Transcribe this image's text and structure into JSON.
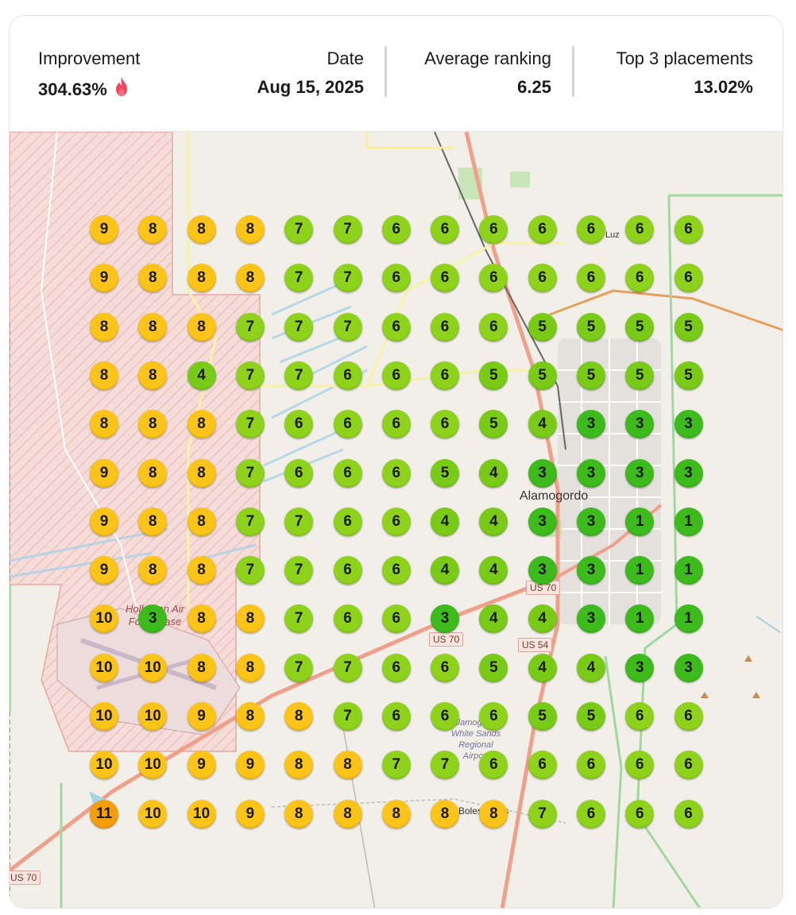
{
  "stats": {
    "improvement": {
      "label": "Improvement",
      "value": "304.63%",
      "icon": "fire-icon"
    },
    "date": {
      "label": "Date",
      "value": "Aug 15, 2025"
    },
    "average_ranking": {
      "label": "Average ranking",
      "value": "6.25"
    },
    "top3": {
      "label": "Top 3 placements",
      "value": "13.02%"
    }
  },
  "map": {
    "city_label": "Alamogordo",
    "place_labels": [
      "Luz",
      "Holloman Air Force Base",
      "Alamogordo White Sands Regional Airport",
      "Boles Acres"
    ],
    "road_shields": [
      "US 70",
      "US 70",
      "US 54",
      "US 70"
    ],
    "colors": {
      "rank_11": "#f59e0b",
      "rank_8_10": "#fcc419",
      "rank_6_7": "#8fd21b",
      "rank_4_5": "#7acb17",
      "rank_1_3": "#3dbb1c"
    },
    "grid": [
      [
        9,
        8,
        8,
        8,
        7,
        7,
        6,
        6,
        6,
        6,
        6,
        6,
        6
      ],
      [
        9,
        8,
        8,
        8,
        7,
        7,
        6,
        6,
        6,
        6,
        6,
        6,
        6
      ],
      [
        8,
        8,
        8,
        7,
        7,
        7,
        6,
        6,
        6,
        5,
        5,
        5,
        5
      ],
      [
        8,
        8,
        4,
        7,
        7,
        6,
        6,
        6,
        5,
        5,
        5,
        5,
        5
      ],
      [
        8,
        8,
        8,
        7,
        6,
        6,
        6,
        6,
        5,
        4,
        3,
        3,
        3
      ],
      [
        9,
        8,
        8,
        7,
        6,
        6,
        6,
        5,
        4,
        3,
        3,
        3,
        3
      ],
      [
        9,
        8,
        8,
        7,
        7,
        6,
        6,
        4,
        4,
        3,
        3,
        1,
        1
      ],
      [
        9,
        8,
        8,
        7,
        7,
        6,
        6,
        4,
        4,
        3,
        3,
        1,
        1
      ],
      [
        10,
        3,
        8,
        8,
        7,
        6,
        6,
        3,
        4,
        4,
        3,
        1,
        1
      ],
      [
        10,
        10,
        8,
        8,
        7,
        7,
        6,
        6,
        5,
        4,
        4,
        3,
        3
      ],
      [
        10,
        10,
        9,
        8,
        8,
        7,
        6,
        6,
        6,
        5,
        5,
        6,
        6
      ],
      [
        10,
        10,
        9,
        9,
        8,
        8,
        7,
        7,
        6,
        6,
        6,
        6,
        6
      ],
      [
        11,
        10,
        10,
        9,
        8,
        8,
        8,
        8,
        8,
        7,
        6,
        6,
        6
      ]
    ]
  }
}
